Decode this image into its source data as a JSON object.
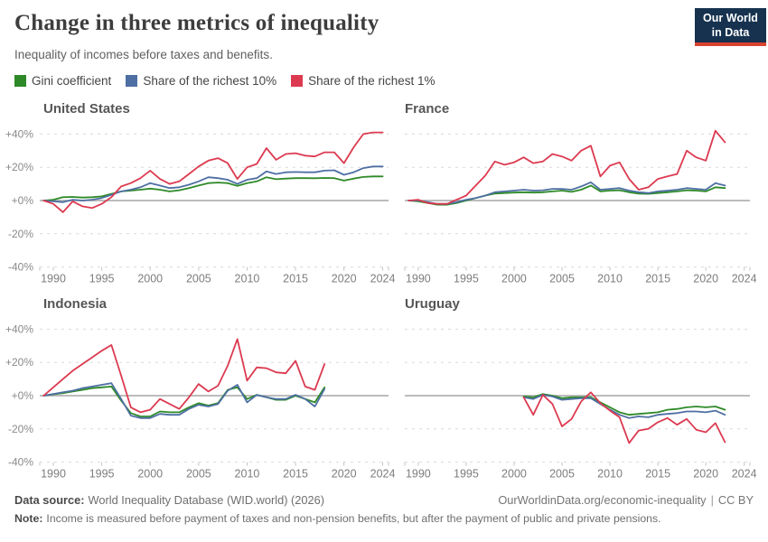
{
  "header": {
    "title": "Change in three metrics of inequality",
    "subtitle": "Inequality of incomes before taxes and benefits."
  },
  "logo": {
    "line1": "Our World",
    "line2": "in Data",
    "bg_color": "#16324f",
    "stripe_color": "#d8432f"
  },
  "legend": [
    {
      "id": "gini",
      "label": "Gini coefficient",
      "color": "#2e8a28"
    },
    {
      "id": "top10",
      "label": "Share of the richest 10%",
      "color": "#4e6fa3"
    },
    {
      "id": "top1",
      "label": "Share of the richest 1%",
      "color": "#dc3a50"
    }
  ],
  "axis": {
    "y_tick_labels": [
      "+40%",
      "+20%",
      "+0%",
      "-20%",
      "-40%"
    ],
    "y_tick_values": [
      40,
      20,
      0,
      -20,
      -40
    ],
    "x_tick_years": [
      1990,
      1995,
      2000,
      2005,
      2010,
      2015,
      2020,
      2024
    ],
    "xlim": [
      1988.6,
      2024.6
    ],
    "ylim": [
      -40,
      40
    ],
    "grid_color": "#d9d9d9",
    "zero_line_color": "#a6a6a6",
    "tick_color": "#c4c4c4",
    "y_label_color": "#8a8a8a",
    "x_label_color": "#7d7d7d"
  },
  "chart_data": [
    {
      "type": "line",
      "title": "United States",
      "x": [
        1989,
        1990,
        1991,
        1992,
        1993,
        1994,
        1995,
        1996,
        1997,
        1998,
        1999,
        2000,
        2001,
        2002,
        2003,
        2004,
        2005,
        2006,
        2007,
        2008,
        2009,
        2010,
        2011,
        2012,
        2013,
        2014,
        2015,
        2016,
        2017,
        2018,
        2019,
        2020,
        2021,
        2022,
        2023,
        2024
      ],
      "series": [
        {
          "id": "gini",
          "name": "Gini coefficient",
          "values": [
            0,
            0.5,
            2,
            2.2,
            1.8,
            2,
            2.5,
            4,
            5.5,
            6,
            6.5,
            7.2,
            6.5,
            5.5,
            6.2,
            7.5,
            9,
            10.5,
            10.8,
            10.5,
            8.8,
            10.5,
            11.5,
            14,
            12.8,
            13.2,
            13.5,
            13.5,
            13.4,
            13.6,
            13.5,
            12,
            13.2,
            14.2,
            14.5,
            14.5
          ]
        },
        {
          "id": "top10",
          "name": "Share of the richest 10%",
          "values": [
            0,
            -0.5,
            -1,
            0.5,
            0,
            0.5,
            1.5,
            3.5,
            5.5,
            6.5,
            8,
            10.5,
            9,
            7.5,
            8,
            9.5,
            11.5,
            14,
            13.5,
            12.5,
            10,
            12.5,
            13.5,
            17.5,
            16,
            17,
            17.2,
            17,
            17,
            18,
            18.2,
            15.5,
            17,
            19.5,
            20.5,
            20.5
          ]
        },
        {
          "id": "top1",
          "name": "Share of the richest 1%",
          "values": [
            0,
            -2,
            -7,
            -0.5,
            -3.5,
            -4.5,
            -2,
            2,
            8.5,
            10.5,
            13.5,
            18,
            13,
            10,
            11.5,
            16,
            20.5,
            24,
            25.5,
            22.5,
            13,
            20,
            22,
            31.5,
            24.5,
            28,
            28.5,
            27,
            26.5,
            29,
            29,
            22.5,
            32,
            40,
            41,
            41
          ]
        }
      ]
    },
    {
      "type": "line",
      "title": "France",
      "x": [
        1989,
        1990,
        1991,
        1992,
        1993,
        1994,
        1995,
        1996,
        1997,
        1998,
        1999,
        2000,
        2001,
        2002,
        2003,
        2004,
        2005,
        2006,
        2007,
        2008,
        2009,
        2010,
        2011,
        2012,
        2013,
        2014,
        2015,
        2016,
        2017,
        2018,
        2019,
        2020,
        2021,
        2022
      ],
      "series": [
        {
          "id": "gini",
          "name": "Gini coefficient",
          "values": [
            0,
            -0.5,
            -1.5,
            -2.5,
            -2.5,
            -1.5,
            0,
            1.5,
            3,
            4.2,
            4.5,
            4.8,
            5,
            4.8,
            5,
            5.5,
            6,
            5.2,
            6.5,
            9,
            5.5,
            6,
            6.2,
            5,
            4.2,
            4,
            4.5,
            5,
            5.5,
            6.2,
            6,
            5.5,
            8,
            7.5
          ]
        },
        {
          "id": "top10",
          "name": "Share of the richest 10%",
          "values": [
            0,
            0,
            -1,
            -2,
            -2,
            -1,
            0.5,
            1.5,
            3,
            5,
            5.5,
            6,
            6.5,
            6,
            6.2,
            7,
            7,
            6.5,
            8.5,
            11,
            6.5,
            7,
            7.5,
            6,
            5,
            4.5,
            5.5,
            6,
            6.5,
            7.5,
            7,
            6.5,
            10.5,
            9
          ]
        },
        {
          "id": "top1",
          "name": "Share of the richest 1%",
          "values": [
            0,
            0.5,
            -1.5,
            -2,
            -2,
            0.5,
            3,
            9,
            15,
            23.5,
            21.5,
            23,
            26,
            22.5,
            23.5,
            28,
            26.5,
            24,
            30,
            33,
            14.5,
            21,
            23,
            13,
            6.5,
            8,
            13,
            14.5,
            16,
            30,
            26,
            24,
            42,
            35
          ]
        }
      ]
    },
    {
      "type": "line",
      "title": "Indonesia",
      "x": [
        1989,
        1990,
        1991,
        1992,
        1993,
        1994,
        1995,
        1996,
        1997,
        1998,
        1999,
        2000,
        2001,
        2002,
        2003,
        2004,
        2005,
        2006,
        2007,
        2008,
        2009,
        2010,
        2011,
        2012,
        2013,
        2014,
        2015,
        2016,
        2017,
        2018
      ],
      "series": [
        {
          "id": "gini",
          "name": "Gini coefficient",
          "values": [
            0,
            0.8,
            1.5,
            2.5,
            3.5,
            4.5,
            5,
            5.5,
            -3,
            -10.5,
            -12.5,
            -12.5,
            -9.5,
            -10,
            -10,
            -7,
            -4.5,
            -6,
            -4.5,
            3.5,
            5,
            -2,
            0.5,
            -1,
            -2.5,
            -2.5,
            0,
            -2,
            -4,
            5
          ]
        },
        {
          "id": "top10",
          "name": "Share of the richest 10%",
          "values": [
            0,
            1,
            2,
            3,
            4.5,
            5.5,
            6.5,
            7.5,
            -2,
            -12,
            -13.5,
            -13.5,
            -11,
            -11.5,
            -11.5,
            -8,
            -5.5,
            -6.5,
            -5,
            3,
            6.5,
            -4,
            0.5,
            -1,
            -2,
            -2,
            0.5,
            -2,
            -6.5,
            4
          ]
        },
        {
          "id": "top1",
          "name": "Share of the richest 1%",
          "values": [
            0,
            5,
            10,
            15,
            19,
            23,
            27,
            30.5,
            12,
            -7,
            -10,
            -8.5,
            -2,
            -5,
            -8,
            -1,
            7,
            2.5,
            6,
            18,
            34,
            9,
            17,
            16.5,
            14,
            13.5,
            21,
            5.5,
            3.5,
            19
          ]
        }
      ]
    },
    {
      "type": "line",
      "title": "Uruguay",
      "x": [
        2001,
        2002,
        2003,
        2004,
        2005,
        2006,
        2007,
        2008,
        2009,
        2010,
        2011,
        2012,
        2013,
        2014,
        2015,
        2016,
        2017,
        2018,
        2019,
        2020,
        2021,
        2022
      ],
      "series": [
        {
          "id": "gini",
          "name": "Gini coefficient",
          "values": [
            -0.5,
            -1,
            1,
            0,
            -1.5,
            -1,
            -1,
            -1,
            -4,
            -7,
            -10,
            -11.5,
            -11,
            -10.5,
            -10,
            -8.5,
            -8,
            -7,
            -6.5,
            -7,
            -6.5,
            -8.5
          ]
        },
        {
          "id": "top10",
          "name": "Share of the richest 10%",
          "values": [
            -1,
            -2,
            0.5,
            -0.5,
            -2.5,
            -2,
            -1.5,
            -1.5,
            -5,
            -8.5,
            -11.5,
            -13.5,
            -12.5,
            -13,
            -11.5,
            -11,
            -10.5,
            -9.5,
            -9.5,
            -10,
            -9,
            -11.5
          ]
        },
        {
          "id": "top1",
          "name": "Share of the richest 1%",
          "values": [
            -1,
            -11.5,
            0.5,
            -5,
            -18.5,
            -14,
            -3.5,
            2,
            -4.5,
            -9,
            -13,
            -28.5,
            -21,
            -20,
            -16,
            -13.5,
            -17.5,
            -14,
            -20.5,
            -22,
            -16.5,
            -28
          ]
        }
      ]
    }
  ],
  "footer": {
    "source_label": "Data source:",
    "source_text": "World Inequality Database (WID.world) (2026)",
    "link": "OurWorldinData.org/economic-inequality",
    "divider": "|",
    "license": "CC BY",
    "note_label": "Note:",
    "note_text": "Income is measured before payment of taxes and non-pension benefits, but after the payment of public and private pensions."
  }
}
